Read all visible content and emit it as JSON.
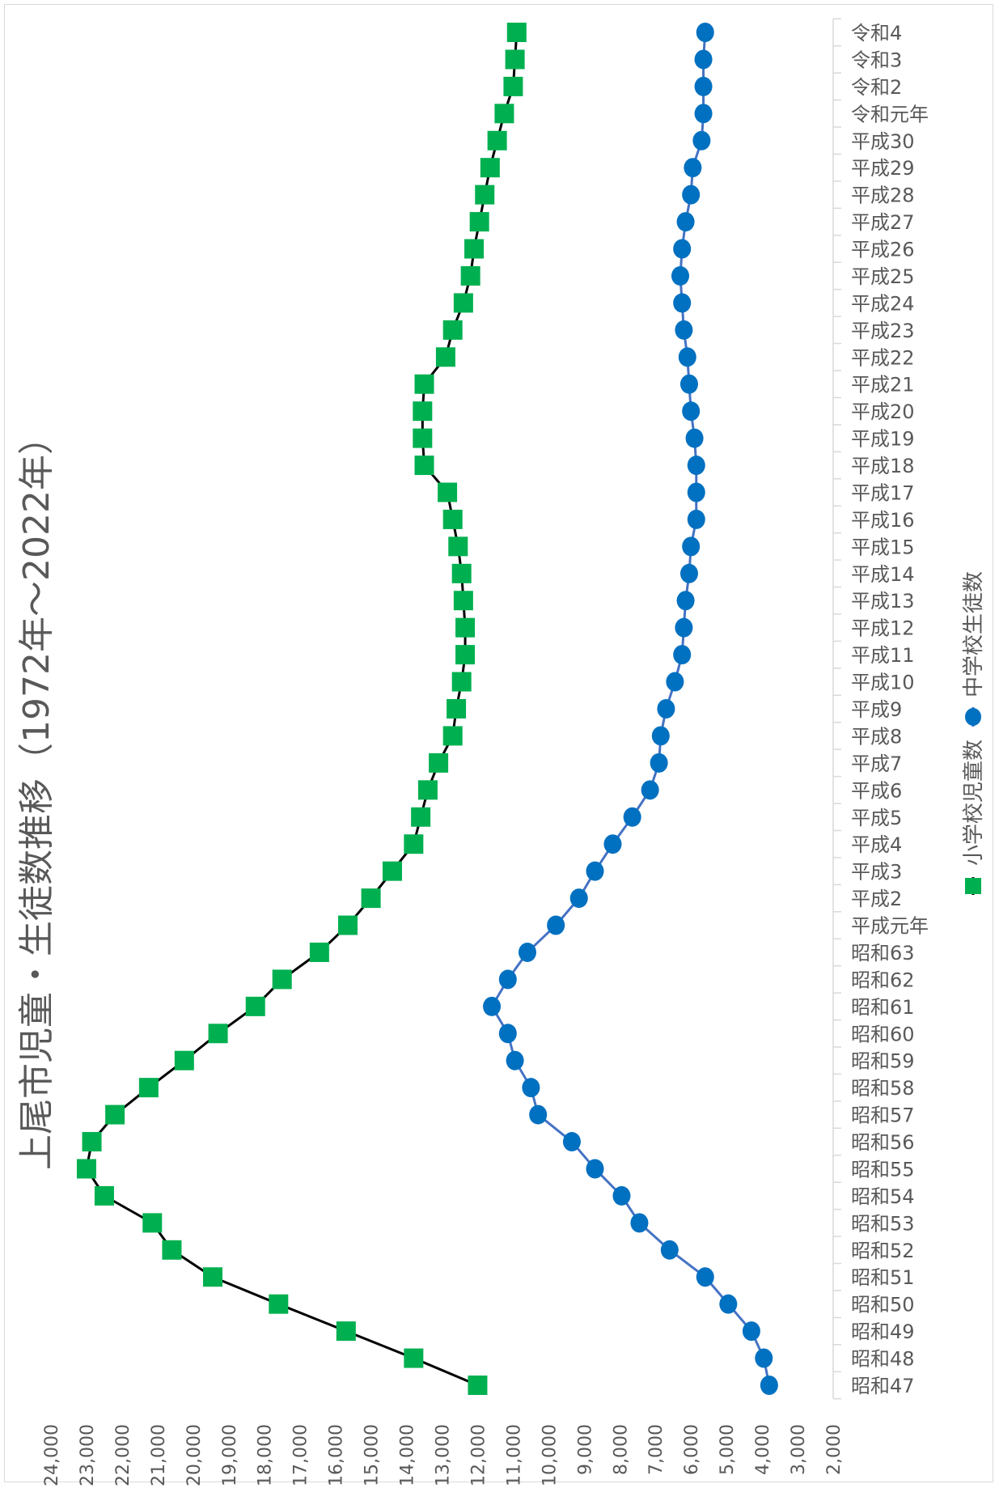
{
  "chart_data": {
    "type": "line",
    "title": "上尾市児童・生徒数推移（1972年～2022年）",
    "categories": [
      "昭和47",
      "昭和48",
      "昭和49",
      "昭和50",
      "昭和51",
      "昭和52",
      "昭和53",
      "昭和54",
      "昭和55",
      "昭和56",
      "昭和57",
      "昭和58",
      "昭和59",
      "昭和60",
      "昭和61",
      "昭和62",
      "昭和63",
      "平成元年",
      "平成2",
      "平成3",
      "平成4",
      "平成5",
      "平成6",
      "平成7",
      "平成8",
      "平成9",
      "平成10",
      "平成11",
      "平成12",
      "平成13",
      "平成14",
      "平成15",
      "平成16",
      "平成17",
      "平成18",
      "平成19",
      "平成20",
      "平成21",
      "平成22",
      "平成23",
      "平成24",
      "平成25",
      "平成26",
      "平成27",
      "平成28",
      "平成29",
      "平成30",
      "令和元年",
      "令和2",
      "令和3",
      "令和4"
    ],
    "ylim": [
      2000,
      24000
    ],
    "yticks": [
      2000,
      3000,
      4000,
      5000,
      6000,
      7000,
      8000,
      9000,
      10000,
      11000,
      12000,
      13000,
      14000,
      15000,
      16000,
      17000,
      18000,
      19000,
      20000,
      21000,
      22000,
      23000,
      24000
    ],
    "ytick_labels": [
      "2,000",
      "3,000",
      "4,000",
      "5,000",
      "6,000",
      "7,000",
      "8,000",
      "9,000",
      "10,000",
      "11,000",
      "12,000",
      "13,000",
      "14,000",
      "15,000",
      "16,000",
      "17,000",
      "18,000",
      "19,000",
      "20,000",
      "21,000",
      "22,000",
      "23,000",
      "24,000"
    ],
    "orientation": "rotated-90",
    "grid": false,
    "legend": "bottom",
    "series": [
      {
        "name": "小学校児童数",
        "color": "#00b050",
        "line_color": "#000000",
        "marker": "square",
        "values": [
          12000,
          13800,
          15700,
          17600,
          19450,
          20600,
          21150,
          22500,
          23000,
          22850,
          22200,
          21250,
          20250,
          19300,
          18250,
          17500,
          16450,
          15650,
          15000,
          14400,
          13800,
          13600,
          13400,
          13100,
          12700,
          12600,
          12450,
          12350,
          12350,
          12400,
          12450,
          12550,
          12700,
          12850,
          13500,
          13550,
          13550,
          13500,
          12900,
          12700,
          12400,
          12200,
          12100,
          11950,
          11800,
          11650,
          11450,
          11250,
          11000,
          10950,
          10900
        ]
      },
      {
        "name": "中学校生徒数",
        "color": "#0070c0",
        "line_color": "#4472c4",
        "marker": "circle",
        "values": [
          3800,
          3950,
          4300,
          4950,
          5600,
          6600,
          7450,
          7950,
          8700,
          9350,
          10300,
          10500,
          10950,
          11150,
          11600,
          11150,
          10600,
          9800,
          9150,
          8700,
          8200,
          7650,
          7150,
          6900,
          6850,
          6700,
          6450,
          6250,
          6200,
          6150,
          6050,
          6000,
          5850,
          5850,
          5850,
          5900,
          6000,
          6050,
          6100,
          6200,
          6250,
          6300,
          6250,
          6150,
          6000,
          5950,
          5700,
          5650,
          5650,
          5650,
          5600
        ]
      }
    ]
  }
}
